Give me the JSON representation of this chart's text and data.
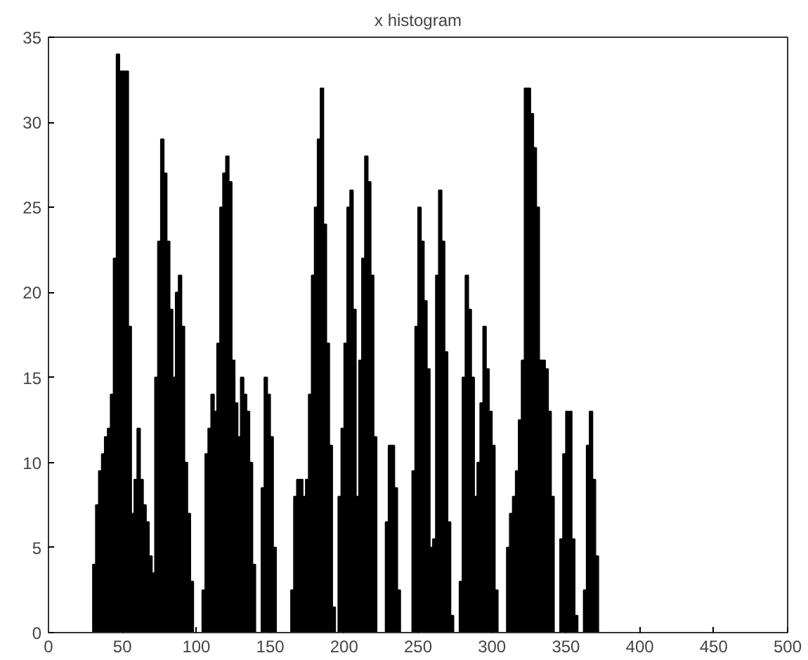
{
  "chart_data": {
    "type": "histogram",
    "title": "x histogram",
    "bins": [
      0,
      30,
      32,
      34,
      36,
      38,
      40,
      42,
      44,
      46,
      48,
      50,
      52,
      54,
      56,
      58,
      60,
      62,
      64,
      66,
      68,
      70,
      72,
      74,
      76,
      78,
      80,
      82,
      84,
      86,
      88,
      90,
      92,
      94,
      96,
      98,
      100,
      102,
      104,
      106,
      108,
      110,
      112,
      114,
      116,
      118,
      120,
      122,
      124,
      126,
      128,
      130,
      132,
      134,
      136,
      138,
      140,
      142,
      144,
      146,
      148,
      150,
      152,
      154,
      156,
      158,
      160,
      162,
      164,
      166,
      168,
      170,
      172,
      174,
      176,
      178,
      180,
      182,
      184,
      186,
      188,
      190,
      192,
      194,
      196,
      198,
      200,
      202,
      204,
      206,
      208,
      210,
      212,
      214,
      216,
      218,
      220,
      222,
      224,
      226,
      228,
      230,
      232,
      234,
      236,
      238,
      240,
      242,
      244,
      246,
      248,
      250,
      252,
      254,
      256,
      258,
      260,
      262,
      264,
      266,
      268,
      270,
      272,
      274,
      276,
      278,
      280,
      282,
      284,
      286,
      288,
      290,
      292,
      294,
      296,
      298,
      300,
      302,
      304,
      306,
      308,
      310,
      312,
      314,
      316,
      318,
      320,
      322,
      324,
      326,
      328,
      330,
      332,
      334,
      336,
      338,
      340,
      342,
      344,
      346,
      348,
      350,
      352,
      354,
      356,
      358,
      360,
      362,
      364,
      366,
      368,
      370,
      372,
      450
    ],
    "values": [
      0,
      4,
      7.5,
      9.5,
      10.5,
      11.5,
      12,
      14,
      22,
      34,
      33,
      33,
      33,
      18,
      7,
      9,
      12,
      9,
      7.5,
      6.5,
      4.5,
      3.5,
      15,
      23,
      29,
      27,
      23,
      19,
      15,
      20,
      21,
      18,
      10,
      7,
      3,
      0,
      0,
      0,
      2.5,
      10.5,
      12,
      14,
      13,
      17,
      25,
      27,
      28,
      26.5,
      16,
      13.5,
      11.5,
      15,
      14,
      13,
      10,
      4,
      0,
      0,
      8.5,
      15,
      14,
      11.5,
      5,
      0,
      0,
      0,
      0,
      0,
      2.5,
      8,
      9,
      9,
      8,
      9,
      14,
      21,
      25,
      29,
      32,
      24,
      17,
      11,
      1.5,
      0,
      8,
      12,
      17,
      25,
      26,
      19,
      8,
      16,
      22,
      28,
      26.5,
      21,
      11.5,
      0,
      0,
      0,
      6.5,
      11,
      11,
      8.5,
      2.5,
      0,
      0,
      0,
      0,
      9.5,
      18,
      25,
      23,
      19.5,
      15.5,
      5,
      5.5,
      21,
      26,
      23,
      16.5,
      6.5,
      1,
      0,
      0,
      3,
      15,
      21,
      19,
      15,
      8,
      10,
      13.5,
      18,
      15.5,
      13,
      11,
      2.5,
      0,
      0,
      0,
      5,
      7,
      8,
      9.5,
      12.5,
      16,
      32,
      32,
      30.5,
      28.5,
      25,
      16,
      16,
      15.5,
      13,
      8,
      0,
      0,
      5.5,
      10.5,
      13,
      13,
      5.5,
      1,
      0,
      0,
      2.5,
      11,
      13,
      9,
      4.5,
      0
    ],
    "color": "#000000",
    "xlim": [
      0,
      500
    ],
    "xticks": [
      0,
      50,
      100,
      150,
      200,
      250,
      300,
      350,
      400,
      450,
      500
    ],
    "ylim": [
      0,
      35
    ],
    "yticks": [
      0,
      5,
      10,
      15,
      20,
      25,
      30,
      35
    ],
    "grid": false
  }
}
